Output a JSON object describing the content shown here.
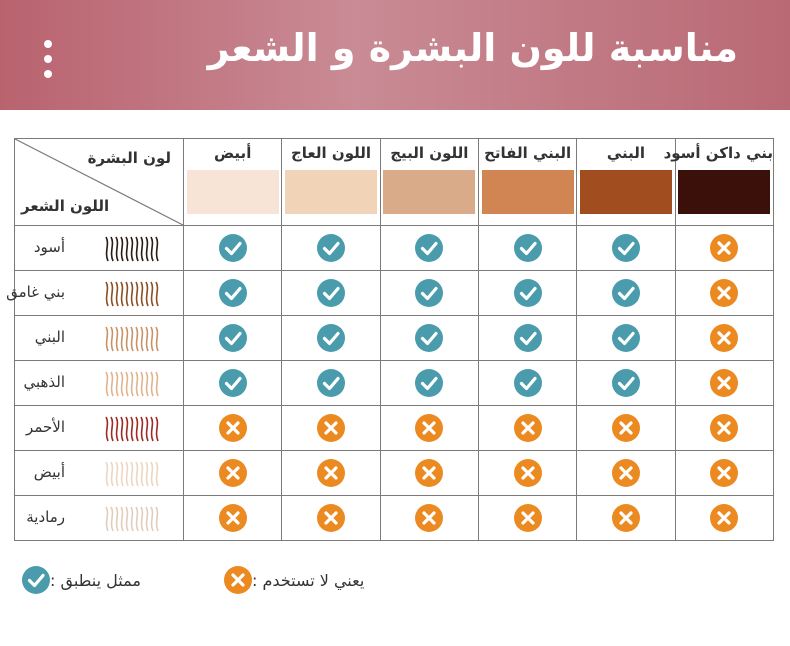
{
  "header": {
    "title": "مناسبة للون البشرة و الشعر"
  },
  "colors": {
    "check": "#4a9cad",
    "cross": "#ec8a22",
    "banner": "#b9636f"
  },
  "corner": {
    "skin_label": "لون البشرة",
    "hair_label": "اللون الشعر"
  },
  "skin_columns": [
    {
      "label": "بني داكن أسود",
      "color": "#3b0f0a"
    },
    {
      "label": "البني",
      "color": "#a14d20"
    },
    {
      "label": "البني الفاتح",
      "color": "#d08552"
    },
    {
      "label": "اللون البيج",
      "color": "#d9ab88"
    },
    {
      "label": "اللون العاج",
      "color": "#f1d3b8"
    },
    {
      "label": "أبيض",
      "color": "#f8e4d6"
    }
  ],
  "rows": [
    {
      "label": "أسود",
      "hair_color": "#2a1a10",
      "marks": [
        "cross",
        "check",
        "check",
        "check",
        "check",
        "check"
      ]
    },
    {
      "label": "بني غامق",
      "hair_color": "#8a4f22",
      "marks": [
        "cross",
        "check",
        "check",
        "check",
        "check",
        "check"
      ]
    },
    {
      "label": "البني",
      "hair_color": "#c79467",
      "marks": [
        "cross",
        "check",
        "check",
        "check",
        "check",
        "check"
      ]
    },
    {
      "label": "الذهبي",
      "hair_color": "#e0b48d",
      "marks": [
        "cross",
        "check",
        "check",
        "check",
        "check",
        "check"
      ]
    },
    {
      "label": "الأحمر",
      "hair_color": "#9e2a24",
      "marks": [
        "cross",
        "cross",
        "cross",
        "cross",
        "cross",
        "cross"
      ]
    },
    {
      "label": "أبيض",
      "hair_color": "#ecd7c4",
      "marks": [
        "cross",
        "cross",
        "cross",
        "cross",
        "cross",
        "cross"
      ]
    },
    {
      "label": "رمادية",
      "hair_color": "#e2cdbc",
      "marks": [
        "cross",
        "cross",
        "cross",
        "cross",
        "cross",
        "cross"
      ]
    }
  ],
  "legend": {
    "check_label": "ممثل ينطبق :",
    "cross_label": "يعني لا تستخدم :"
  }
}
